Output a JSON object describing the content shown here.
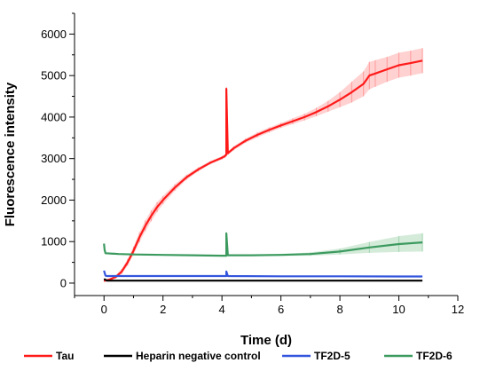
{
  "chart_data": {
    "type": "line",
    "title": "",
    "xlabel": "Time (d)",
    "ylabel": "Fluorescence intensity",
    "xlim": [
      -1,
      12
    ],
    "ylim": [
      -300,
      6500
    ],
    "x_ticks": [
      0,
      2,
      4,
      6,
      8,
      10,
      12
    ],
    "y_ticks": [
      0,
      1000,
      2000,
      3000,
      4000,
      5000,
      6000
    ],
    "grid": false,
    "legend_position": "bottom",
    "series": [
      {
        "name": "Tau",
        "color": "#ff1a1a",
        "error_color": "#ff9999",
        "x": [
          0.0,
          0.2,
          0.4,
          0.6,
          0.8,
          1.0,
          1.2,
          1.4,
          1.6,
          1.8,
          2.0,
          2.4,
          2.8,
          3.2,
          3.6,
          4.0,
          4.1,
          4.15,
          4.15,
          4.2,
          4.4,
          4.8,
          5.2,
          5.6,
          6.0,
          6.4,
          6.8,
          7.2,
          7.6,
          8.0,
          8.4,
          8.8,
          9.0,
          9.2,
          9.6,
          10.0,
          10.4,
          10.8
        ],
        "y": [
          50,
          90,
          150,
          280,
          500,
          780,
          1100,
          1380,
          1620,
          1830,
          2000,
          2300,
          2550,
          2740,
          2900,
          3020,
          3060,
          3100,
          4680,
          3130,
          3250,
          3430,
          3570,
          3690,
          3800,
          3900,
          4000,
          4120,
          4260,
          4420,
          4600,
          4800,
          5000,
          5050,
          5150,
          5250,
          5300,
          5360
        ],
        "err": [
          20,
          30,
          40,
          60,
          80,
          100,
          120,
          130,
          130,
          120,
          100,
          80,
          60,
          50,
          40,
          40,
          40,
          40,
          40,
          40,
          50,
          50,
          60,
          60,
          60,
          70,
          80,
          100,
          130,
          180,
          250,
          300,
          330,
          320,
          300,
          300,
          300,
          300
        ]
      },
      {
        "name": "Heparin negative control",
        "color": "#000000",
        "x": [
          0.0,
          0.1,
          1.0,
          2.0,
          4.0,
          6.0,
          8.0,
          10.0,
          10.8
        ],
        "y": [
          100,
          60,
          60,
          60,
          60,
          60,
          60,
          60,
          60
        ]
      },
      {
        "name": "TF2D-5",
        "color": "#3355dd",
        "x": [
          0.0,
          0.05,
          0.1,
          1.0,
          2.0,
          4.0,
          4.15,
          4.15,
          4.2,
          6.0,
          8.0,
          10.0,
          10.8
        ],
        "y": [
          300,
          180,
          170,
          170,
          170,
          170,
          170,
          280,
          170,
          165,
          165,
          160,
          160
        ]
      },
      {
        "name": "TF2D-6",
        "color": "#3c9a5f",
        "error_color": "#9fd3ad",
        "x": [
          0.0,
          0.02,
          0.05,
          0.5,
          1.0,
          2.0,
          3.0,
          4.0,
          4.15,
          4.15,
          4.2,
          5.0,
          6.0,
          7.0,
          8.0,
          9.0,
          10.0,
          10.8
        ],
        "y": [
          950,
          800,
          720,
          700,
          690,
          680,
          670,
          660,
          660,
          1200,
          670,
          670,
          680,
          700,
          760,
          860,
          940,
          980
        ],
        "err": [
          10,
          10,
          10,
          10,
          10,
          10,
          10,
          10,
          10,
          10,
          10,
          15,
          25,
          40,
          70,
          130,
          190,
          220
        ]
      }
    ]
  }
}
